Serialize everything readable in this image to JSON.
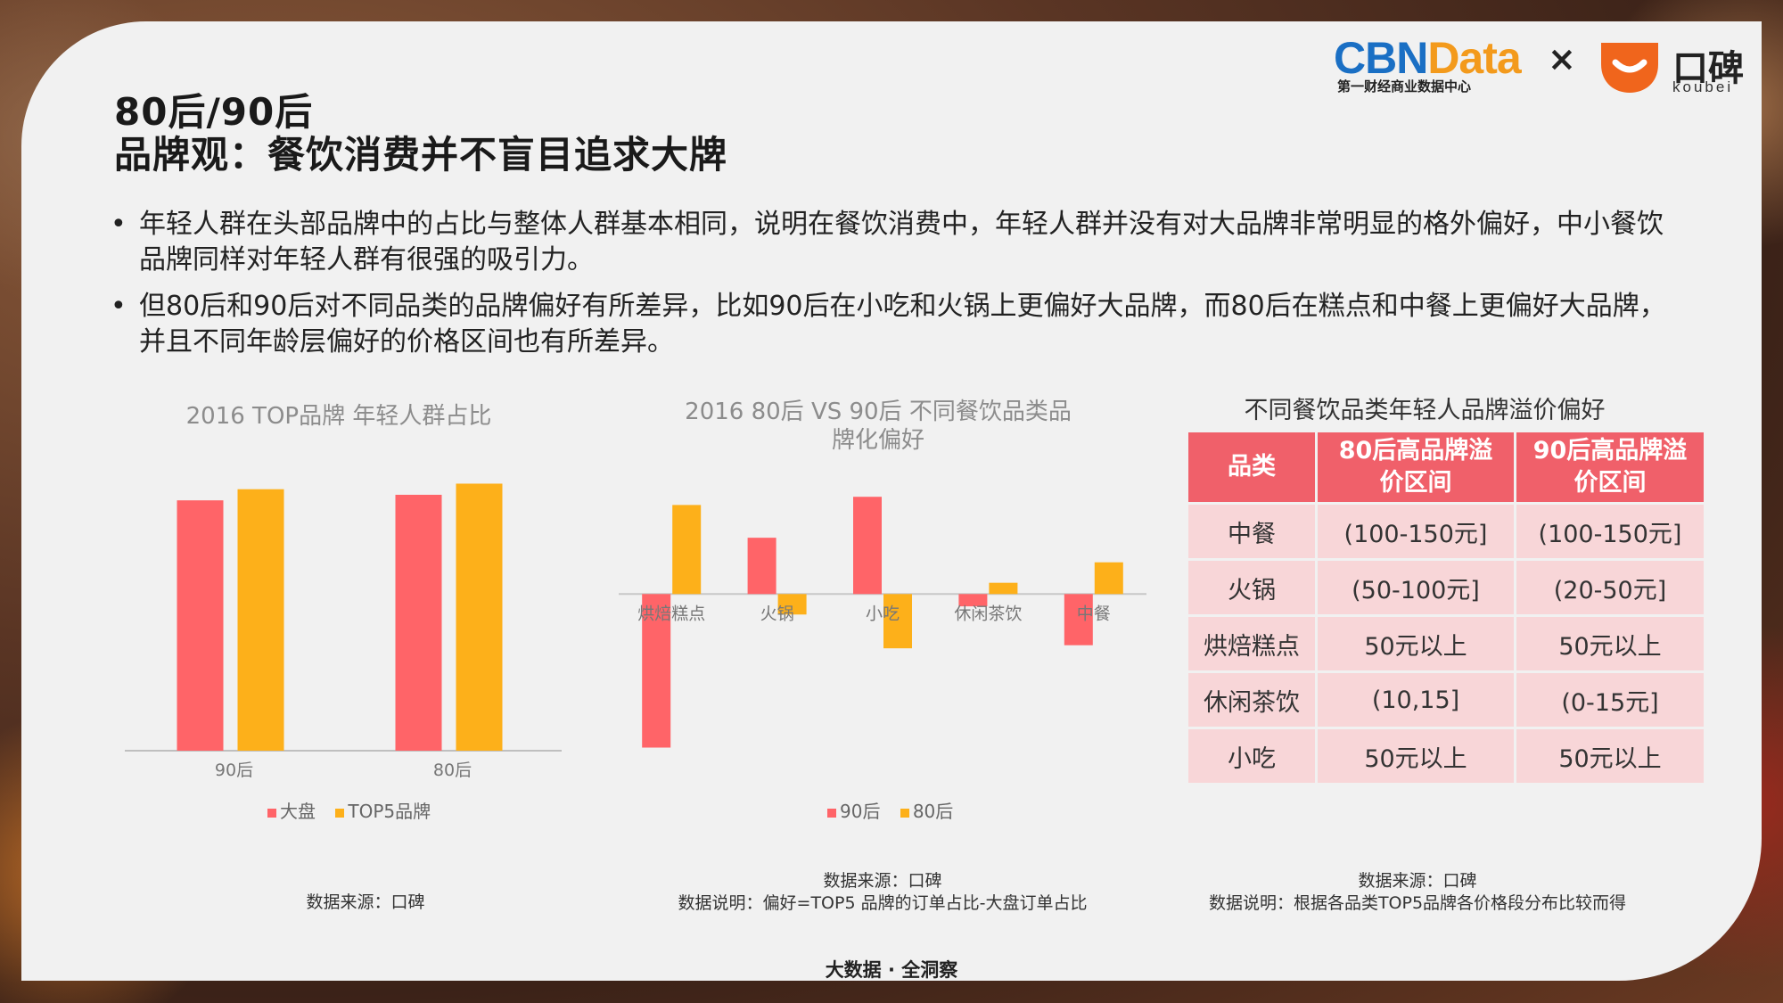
{
  "header": {
    "title_line1": "80后/90后",
    "title_line2": "品牌观：餐饮消费并不盲目追求大牌"
  },
  "logos": {
    "cbn_part1": "CBN",
    "cbn_part2": "Data",
    "cbn_sub": "第一财经商业数据中心",
    "cross": "×",
    "koubei_cn": "口碑",
    "koubei_en": "koubei"
  },
  "bullets": [
    "年轻人群在头部品牌中的占比与整体人群基本相同，说明在餐饮消费中，年轻人群并没有对大品牌非常明显的格外偏好，中小餐饮品牌同样对年轻人群有很强的吸引力。",
    "但80后和90后对不同品类的品牌偏好有所差异，比如90后在小吃和火锅上更偏好大品牌，而80后在糕点和中餐上更偏好大品牌，并且不同年龄层偏好的价格区间也有所差异。"
  ],
  "bullet_symbol": "•",
  "colors": {
    "red": "#ff6468",
    "orange": "#fdb01a",
    "table_head": "#f0606a",
    "table_cell": "#f8d6d8"
  },
  "chart_data": [
    {
      "type": "bar",
      "title": "2016 TOP品牌 年轻人群占比",
      "categories": [
        "90后",
        "80后"
      ],
      "series": [
        {
          "name": "大盘",
          "values": [
            0.9,
            0.92
          ]
        },
        {
          "name": "TOP5品牌",
          "values": [
            0.94,
            0.96
          ]
        }
      ],
      "ylim": [
        0,
        1
      ],
      "legend": "bottom",
      "grid": false
    },
    {
      "type": "bar",
      "title": "2016 80后 VS 90后 不同餐饮品类品牌化偏好",
      "categories": [
        "烘焙糕点",
        "火锅",
        "小吃",
        "休闲茶饮",
        "中餐"
      ],
      "series": [
        {
          "name": "90后",
          "values": [
            -15,
            5.5,
            9.5,
            -1.2,
            -5
          ]
        },
        {
          "name": "80后",
          "values": [
            8.7,
            -2,
            -5.3,
            1.1,
            3.1
          ]
        }
      ],
      "ylim": [
        -16,
        11
      ],
      "legend": "bottom",
      "grid": false
    },
    {
      "type": "table",
      "title": "不同餐饮品类年轻人品牌溢价偏好",
      "columns": [
        "品类",
        "80后高品牌溢价区间",
        "90后高品牌溢价区间"
      ],
      "rows": [
        [
          "中餐",
          "(100-150元]",
          "(100-150元]"
        ],
        [
          "火锅",
          "(50-100元]",
          "(20-50元]"
        ],
        [
          "烘焙糕点",
          "50元以上",
          "50元以上"
        ],
        [
          "休闲茶饮",
          "(10,15]",
          "(0-15元]"
        ],
        [
          "小吃",
          "50元以上",
          "50元以上"
        ]
      ]
    }
  ],
  "notes": {
    "chart1_source": "数据来源：口碑",
    "chart2_source": "数据来源：口碑",
    "chart2_desc": "数据说明：偏好=TOP5 品牌的订单占比-大盘订单占比",
    "chart3_source": "数据来源：口碑",
    "chart3_desc": "数据说明：根据各品类TOP5品牌各价格段分布比较而得"
  },
  "footer": "大数据 · 全洞察"
}
